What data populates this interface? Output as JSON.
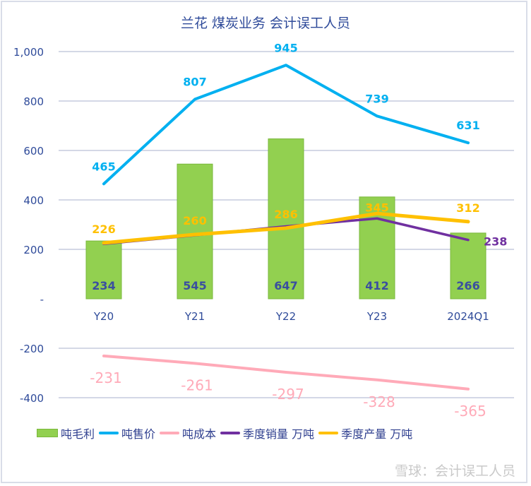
{
  "chart_data": {
    "type": "bar+line",
    "title": "兰花 煤炭业务 会计误工人员",
    "categories": [
      "Y20",
      "Y21",
      "Y22",
      "Y23",
      "2024Q1"
    ],
    "ylim": [
      -480,
      1000
    ],
    "yticks": [
      1000,
      800,
      600,
      400,
      200,
      0,
      -200,
      -400
    ],
    "ytick_labels": [
      "1,000",
      "800",
      "600",
      "400",
      "200",
      "-",
      "-200",
      "-400"
    ],
    "grid": true,
    "legend_position": "bottom",
    "series": [
      {
        "name": "吨毛利",
        "kind": "bar",
        "color": "#92d050",
        "label_color": "#3a4fa0",
        "values": [
          234,
          545,
          647,
          412,
          266
        ],
        "labels": [
          "234",
          "545",
          "647",
          "412",
          "266"
        ]
      },
      {
        "name": "吨售价",
        "kind": "line",
        "color": "#00b0f0",
        "values": [
          465,
          807,
          945,
          739,
          631
        ],
        "labels": [
          "465",
          "807",
          "945",
          "739",
          "631"
        ]
      },
      {
        "name": "吨成本",
        "kind": "line",
        "color": "#ffaab8",
        "values": [
          -231,
          -261,
          -297,
          -328,
          -365
        ],
        "labels": [
          "-231",
          "-261",
          "-297",
          "-328",
          "-365"
        ]
      },
      {
        "name": "季度销量 万吨",
        "kind": "line",
        "color": "#7030a0",
        "values": [
          222,
          257,
          293,
          325,
          238
        ],
        "labels": [
          "",
          "",
          "",
          "",
          "238"
        ]
      },
      {
        "name": "季度产量 万吨",
        "kind": "line",
        "color": "#ffc000",
        "values": [
          226,
          260,
          286,
          345,
          312
        ],
        "labels": [
          "226",
          "260",
          "286",
          "345",
          "312"
        ]
      }
    ]
  },
  "watermark": "雪球：会计误工人员"
}
